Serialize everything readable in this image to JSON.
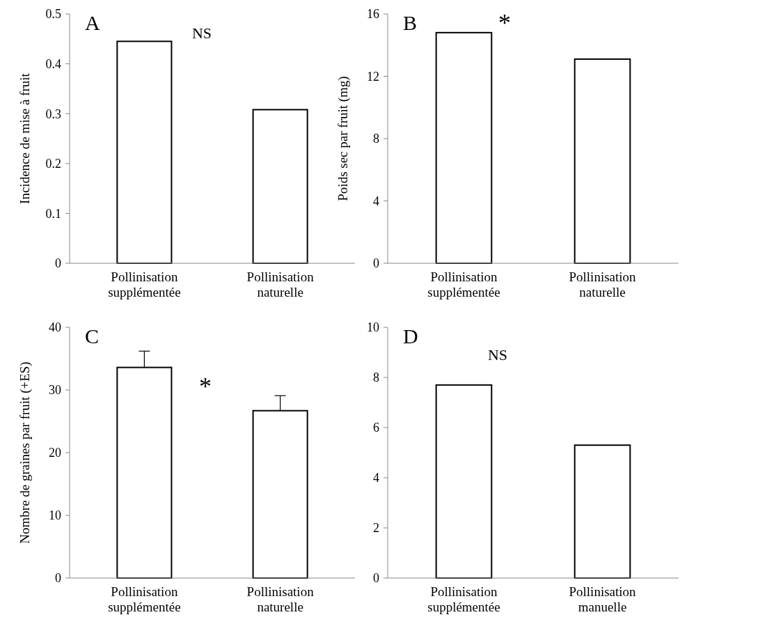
{
  "chart_data": [
    {
      "type": "bar",
      "title": "A",
      "ylabel": "Incidence de mise à fruit",
      "categories": [
        "Pollinisation supplémentée",
        "Pollinisation naturelle"
      ],
      "values": [
        0.445,
        0.308
      ],
      "color": "#ffffff",
      "ylim": [
        0,
        0.5
      ],
      "yticks": [
        {
          "value": 0,
          "label": "0"
        },
        0.1,
        0.2,
        0.3,
        0.4,
        0.5
      ],
      "grid": false,
      "annotations": [
        "NS"
      ]
    },
    {
      "type": "bar",
      "title": "B",
      "ylabel": "Poids sec  par fruit (mg)",
      "categories": [
        "Pollinisation supplémentée",
        "Pollinisation naturelle"
      ],
      "values": [
        14.8,
        13.1
      ],
      "color": "#ffffff",
      "ylim": [
        0,
        16
      ],
      "yticks": [
        0,
        4,
        8,
        12,
        16
      ],
      "grid": false,
      "annotations": [
        "*"
      ]
    },
    {
      "type": "bar",
      "title": "C",
      "ylabel": "Nombre de graines par fruit (+ES)",
      "categories": [
        "Pollinisation supplémentée",
        "Pollinisation naturelle"
      ],
      "values": [
        33.6,
        26.7
      ],
      "errors": [
        [
          33.6,
          36.2
        ],
        [
          26.7,
          29.1
        ]
      ],
      "color": "#ffffff",
      "ylim": [
        0,
        40
      ],
      "yticks": [
        0,
        10,
        20,
        30,
        40
      ],
      "grid": false,
      "annotations": [
        "*"
      ]
    },
    {
      "type": "bar",
      "title": "D",
      "categories": [
        "Pollinisation supplémentée",
        "Pollinisation manuelle"
      ],
      "values": [
        7.7,
        5.3
      ],
      "color": "#ffffff",
      "ylim": [
        0,
        10
      ],
      "yticks": [
        0,
        2,
        4,
        6,
        8,
        10
      ],
      "grid": false,
      "annotations": [
        "NS"
      ]
    }
  ]
}
